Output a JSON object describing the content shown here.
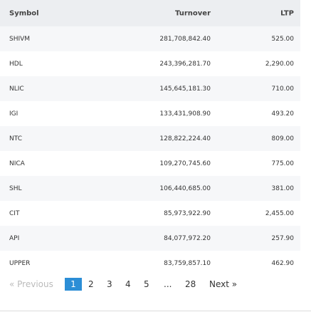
{
  "table": {
    "header": [
      "Symbol",
      "Turnover",
      "LTP"
    ],
    "rows": [
      [
        "SHIVM",
        "281,708,842.40",
        "525.00"
      ],
      [
        "HDL",
        "243,396,281.70",
        "2,290.00"
      ],
      [
        "NLIC",
        "145,645,181.30",
        "710.00"
      ],
      [
        "IGI",
        "133,431,908.90",
        "493.20"
      ],
      [
        "NTC",
        "128,822,224.40",
        "809.00"
      ],
      [
        "NICA",
        "109,270,745.60",
        "775.00"
      ],
      [
        "SHL",
        "106,440,685.00",
        "381.00"
      ],
      [
        "CIT",
        "85,973,922.90",
        "2,455.00"
      ],
      [
        "API",
        "84,077,972.20",
        "257.90"
      ],
      [
        "UPPER",
        "83,759,857.10",
        "462.90"
      ]
    ]
  },
  "pagination": {
    "previous": "« Previous",
    "pages": [
      "1",
      "2",
      "3",
      "4",
      "5",
      "...",
      "28"
    ],
    "next": "Next »"
  }
}
